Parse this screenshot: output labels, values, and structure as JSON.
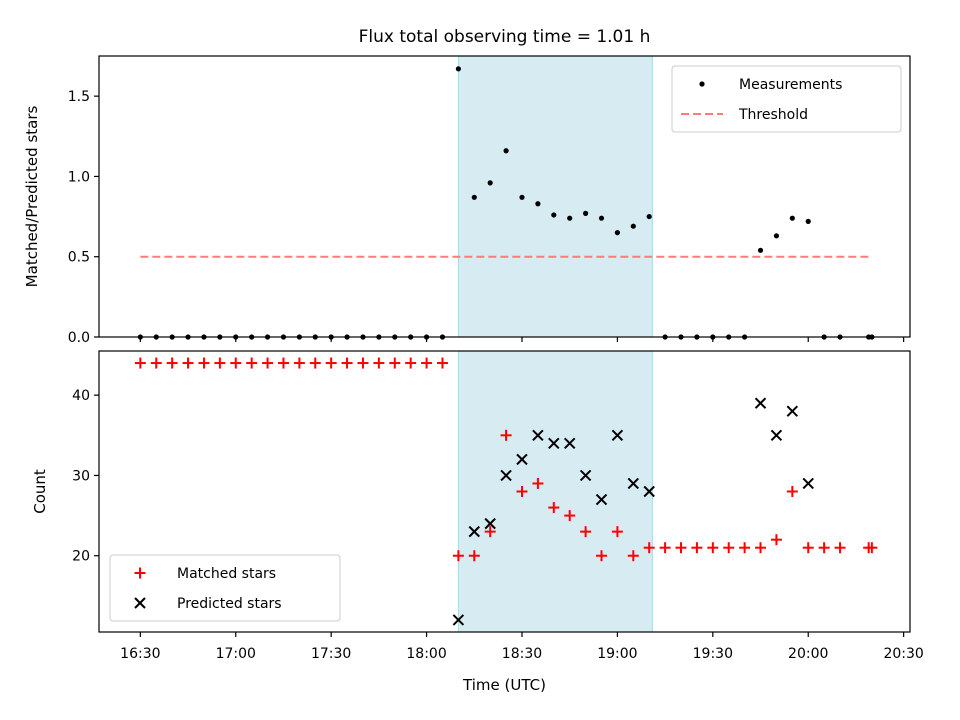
{
  "figure": {
    "title": "Flux total observing time = 1.01 h",
    "xlabel": "Time (UTC)",
    "xticks": [
      {
        "t": "16:30",
        "label": "16:30"
      },
      {
        "t": "17:00",
        "label": "17:00"
      },
      {
        "t": "17:30",
        "label": "17:30"
      },
      {
        "t": "18:00",
        "label": "18:00"
      },
      {
        "t": "18:30",
        "label": "18:30"
      },
      {
        "t": "19:00",
        "label": "19:00"
      },
      {
        "t": "19:30",
        "label": "19:30"
      },
      {
        "t": "20:00",
        "label": "20:00"
      },
      {
        "t": "20:30",
        "label": "20:30"
      }
    ],
    "xlim": [
      "16:17",
      "20:32"
    ],
    "highlight_span": [
      "18:10",
      "19:11"
    ],
    "highlight_color": "#add8e6",
    "shared_x_axis": true
  },
  "chart_data": [
    {
      "type": "scatter",
      "ylabel": "Matched/Predicted stars",
      "ylim": [
        0,
        1.75
      ],
      "yticks": [
        "0.0",
        "0.5",
        "1.0",
        "1.5"
      ],
      "ytick_values": [
        0,
        0.5,
        1.0,
        1.5
      ],
      "legend_position": "top-right",
      "grid": false,
      "series": [
        {
          "name": "Measurements",
          "kind": "scatter",
          "marker": "dot",
          "color": "#000000",
          "points": [
            [
              "16:30",
              0
            ],
            [
              "16:35",
              0
            ],
            [
              "16:40",
              0
            ],
            [
              "16:45",
              0
            ],
            [
              "16:50",
              0
            ],
            [
              "16:55",
              0
            ],
            [
              "17:00",
              0
            ],
            [
              "17:05",
              0
            ],
            [
              "17:10",
              0
            ],
            [
              "17:15",
              0
            ],
            [
              "17:20",
              0
            ],
            [
              "17:25",
              0
            ],
            [
              "17:30",
              0
            ],
            [
              "17:35",
              0
            ],
            [
              "17:40",
              0
            ],
            [
              "17:45",
              0
            ],
            [
              "17:50",
              0
            ],
            [
              "17:55",
              0
            ],
            [
              "18:00",
              0
            ],
            [
              "18:05",
              0
            ],
            [
              "18:10",
              1.67
            ],
            [
              "18:15",
              0.87
            ],
            [
              "18:20",
              0.96
            ],
            [
              "18:25",
              1.16
            ],
            [
              "18:30",
              0.87
            ],
            [
              "18:35",
              0.83
            ],
            [
              "18:40",
              0.76
            ],
            [
              "18:45",
              0.74
            ],
            [
              "18:50",
              0.77
            ],
            [
              "18:55",
              0.74
            ],
            [
              "19:00",
              0.65
            ],
            [
              "19:05",
              0.69
            ],
            [
              "19:10",
              0.75
            ],
            [
              "19:15",
              0
            ],
            [
              "19:20",
              0
            ],
            [
              "19:25",
              0
            ],
            [
              "19:30",
              0
            ],
            [
              "19:35",
              0
            ],
            [
              "19:40",
              0
            ],
            [
              "19:45",
              0.54
            ],
            [
              "19:50",
              0.63
            ],
            [
              "19:55",
              0.74
            ],
            [
              "20:00",
              0.72
            ],
            [
              "20:05",
              0
            ],
            [
              "20:10",
              0
            ],
            [
              "20:19",
              0
            ],
            [
              "20:20",
              0
            ]
          ]
        },
        {
          "name": "Threshold",
          "kind": "line",
          "style": "dashed",
          "color": "#ff7b7b",
          "points": [
            [
              "16:30",
              0.5
            ],
            [
              "20:20",
              0.5
            ]
          ]
        }
      ]
    },
    {
      "type": "scatter",
      "ylabel": "Count",
      "ylim": [
        10.5,
        45.5
      ],
      "yticks": [
        "20",
        "30",
        "40"
      ],
      "ytick_values": [
        20,
        30,
        40
      ],
      "legend_position": "bottom-left",
      "grid": false,
      "series": [
        {
          "name": "Matched stars",
          "kind": "scatter",
          "marker": "plus",
          "color": "#ff0000",
          "points": [
            [
              "16:30",
              44
            ],
            [
              "16:35",
              44
            ],
            [
              "16:40",
              44
            ],
            [
              "16:45",
              44
            ],
            [
              "16:50",
              44
            ],
            [
              "16:55",
              44
            ],
            [
              "17:00",
              44
            ],
            [
              "17:05",
              44
            ],
            [
              "17:10",
              44
            ],
            [
              "17:15",
              44
            ],
            [
              "17:20",
              44
            ],
            [
              "17:25",
              44
            ],
            [
              "17:30",
              44
            ],
            [
              "17:35",
              44
            ],
            [
              "17:40",
              44
            ],
            [
              "17:45",
              44
            ],
            [
              "17:50",
              44
            ],
            [
              "17:55",
              44
            ],
            [
              "18:00",
              44
            ],
            [
              "18:05",
              44
            ],
            [
              "18:10",
              20
            ],
            [
              "18:15",
              20
            ],
            [
              "18:20",
              23
            ],
            [
              "18:25",
              35
            ],
            [
              "18:30",
              28
            ],
            [
              "18:35",
              29
            ],
            [
              "18:40",
              26
            ],
            [
              "18:45",
              25
            ],
            [
              "18:50",
              23
            ],
            [
              "18:55",
              20
            ],
            [
              "19:00",
              23
            ],
            [
              "19:05",
              20
            ],
            [
              "19:10",
              21
            ],
            [
              "19:15",
              21
            ],
            [
              "19:20",
              21
            ],
            [
              "19:25",
              21
            ],
            [
              "19:30",
              21
            ],
            [
              "19:35",
              21
            ],
            [
              "19:40",
              21
            ],
            [
              "19:45",
              21
            ],
            [
              "19:50",
              22
            ],
            [
              "19:55",
              28
            ],
            [
              "20:00",
              21
            ],
            [
              "20:05",
              21
            ],
            [
              "20:10",
              21
            ],
            [
              "20:19",
              21
            ],
            [
              "20:20",
              21
            ]
          ]
        },
        {
          "name": "Predicted stars",
          "kind": "scatter",
          "marker": "x",
          "color": "#000000",
          "points": [
            [
              "18:10",
              12
            ],
            [
              "18:15",
              23
            ],
            [
              "18:20",
              24
            ],
            [
              "18:25",
              30
            ],
            [
              "18:30",
              32
            ],
            [
              "18:35",
              35
            ],
            [
              "18:40",
              34
            ],
            [
              "18:45",
              34
            ],
            [
              "18:50",
              30
            ],
            [
              "18:55",
              27
            ],
            [
              "19:00",
              35
            ],
            [
              "19:05",
              29
            ],
            [
              "19:10",
              28
            ],
            [
              "19:45",
              39
            ],
            [
              "19:50",
              35
            ],
            [
              "19:55",
              38
            ],
            [
              "20:00",
              29
            ]
          ]
        }
      ]
    }
  ]
}
